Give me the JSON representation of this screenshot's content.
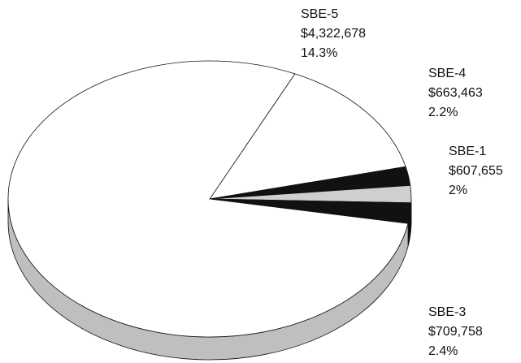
{
  "chart_data": {
    "type": "pie",
    "categories": [
      "SBE-5",
      "SBE-4",
      "SBE-1",
      "SBE-3",
      null
    ],
    "values": [
      14.3,
      2.2,
      2,
      2.4,
      79.1
    ],
    "value_labels": [
      "14.3%",
      "2.2%",
      "2%",
      "2.4%",
      null
    ],
    "amounts": [
      4322678,
      663463,
      607655,
      709758,
      null
    ],
    "amount_labels": [
      "$4,322,678",
      "$663,463",
      "$607,655",
      "$709,758",
      null
    ],
    "colors": [
      "#ffffff",
      "#111111",
      "#cfcfcf",
      "#111111",
      "#ffffff"
    ]
  }
}
